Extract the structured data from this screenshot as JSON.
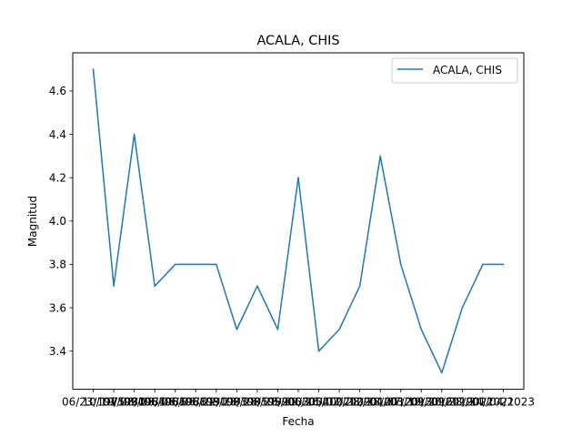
{
  "chart_data": {
    "type": "line",
    "title": "ACALA, CHIS",
    "xlabel": "Fecha",
    "ylabel": "Magnitud",
    "x": [
      "06/23/1975",
      "10/19/1980",
      "01/08/1984",
      "09/08/1986",
      "06/06/1988",
      "06/06/1990",
      "06/22/1993",
      "08/28/1995",
      "08/28/1999",
      "08/28/2003",
      "05/09/2004",
      "06/26/2007",
      "05/07/2009",
      "12/28/2010",
      "12/28/2012",
      "04/07/2013",
      "03/19/2016",
      "09/20/2019",
      "09/28/2021",
      "12/24/2021",
      "01/04/2023"
    ],
    "ylim": [
      3.224,
      4.776
    ],
    "yticks": [
      3.4,
      3.6,
      3.8,
      4.0,
      4.2,
      4.4,
      4.6
    ],
    "ytick_labels": [
      "3.4",
      "3.6",
      "3.8",
      "4.0",
      "4.2",
      "4.4",
      "4.6"
    ],
    "series": [
      {
        "name": "ACALA, CHIS",
        "color": "#1f77b4",
        "values": [
          4.7,
          3.7,
          4.4,
          3.7,
          3.8,
          3.8,
          3.8,
          3.5,
          3.7,
          3.5,
          4.2,
          3.4,
          3.5,
          3.7,
          4.3,
          3.8,
          3.5,
          3.3,
          3.6,
          3.8,
          3.8
        ]
      }
    ],
    "legend": "top-right",
    "grid": false
  }
}
